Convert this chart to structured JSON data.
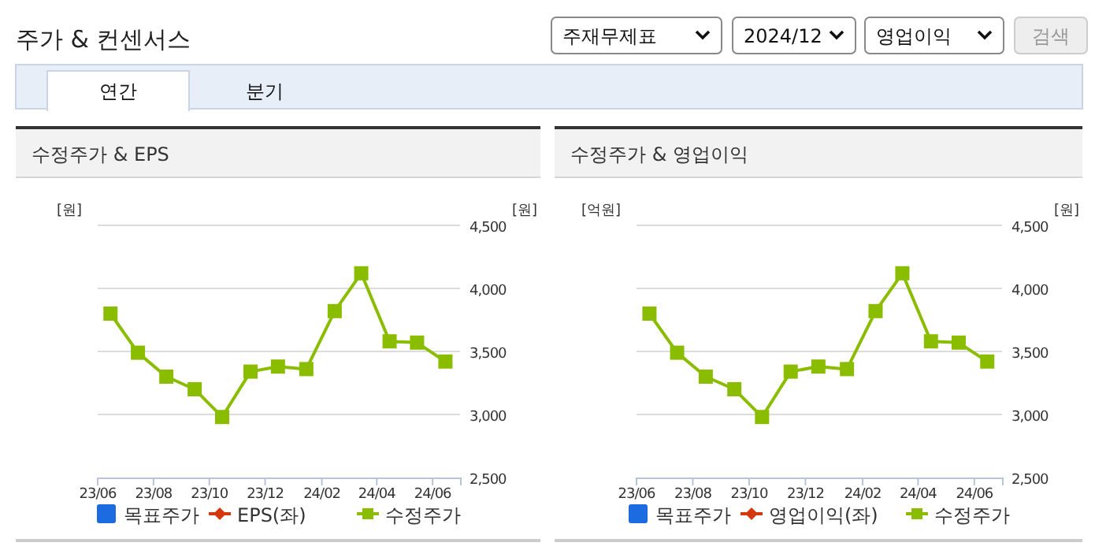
{
  "chart_data": [
    {
      "type": "other",
      "title": "주가 & 컨센서스",
      "annotations": [
        "주재무제표",
        "2024/12",
        "영업이익",
        "검색",
        "연간",
        "분기"
      ]
    },
    {
      "type": "line",
      "title": "수정주가 & EPS",
      "ylabel": "[원]",
      "y2label": "[원]",
      "x": [
        "2023-06-15",
        "2023-07-15",
        "2023-08-15",
        "2023-09-15",
        "2023-10-15",
        "2023-11-15",
        "2023-12-15",
        "2024-01-15",
        "2024-02-15",
        "2024-03-15",
        "2024-04-15",
        "2024-05-15",
        "2024-06-15"
      ],
      "xlim": [
        "2023-06",
        "2024-07"
      ],
      "xticks": [
        {
          "value": "2023-06",
          "label": "23/06"
        },
        {
          "value": "2023-08",
          "label": "23/08"
        },
        {
          "value": "2023-10",
          "label": "23/10"
        },
        {
          "value": "2023-12",
          "label": "23/12"
        },
        {
          "value": "2024-02",
          "label": "24/02"
        },
        {
          "value": "2024-04",
          "label": "24/04"
        },
        {
          "value": "2024-06",
          "label": "24/06"
        }
      ],
      "y2lim": [
        2500,
        4500
      ],
      "y2ticks": [
        {
          "value": 2500,
          "label": "2,500"
        },
        {
          "value": 3000,
          "label": "3,000"
        },
        {
          "value": 3500,
          "label": "3,500"
        },
        {
          "value": 4000,
          "label": "4,000"
        },
        {
          "value": 4500,
          "label": "4,500"
        }
      ],
      "grid": "y",
      "legend": "bottom",
      "series": [
        {
          "name": "목표주가",
          "type": "bar",
          "color": "#1c6be0",
          "values": [
            null,
            null,
            null,
            null,
            null,
            null,
            null,
            null,
            null,
            null,
            null,
            null,
            null
          ]
        },
        {
          "name": "EPS(좌)",
          "type": "line",
          "marker": "diamond",
          "color": "#d4380d",
          "values": [
            null,
            null,
            null,
            null,
            null,
            null,
            null,
            null,
            null,
            null,
            null,
            null,
            null
          ]
        },
        {
          "name": "수정주가",
          "type": "line",
          "marker": "square",
          "axis": "y2",
          "color": "#8abd00",
          "values": [
            3800,
            3490,
            3300,
            3200,
            2980,
            3340,
            3380,
            3360,
            3820,
            4120,
            3580,
            3570,
            3420
          ]
        }
      ]
    },
    {
      "type": "line",
      "title": "수정주가 & 영업이익",
      "ylabel": "[억원]",
      "y2label": "[원]",
      "x": [
        "2023-06-15",
        "2023-07-15",
        "2023-08-15",
        "2023-09-15",
        "2023-10-15",
        "2023-11-15",
        "2023-12-15",
        "2024-01-15",
        "2024-02-15",
        "2024-03-15",
        "2024-04-15",
        "2024-05-15",
        "2024-06-15"
      ],
      "xlim": [
        "2023-06",
        "2024-07"
      ],
      "xticks": [
        {
          "value": "2023-06",
          "label": "23/06"
        },
        {
          "value": "2023-08",
          "label": "23/08"
        },
        {
          "value": "2023-10",
          "label": "23/10"
        },
        {
          "value": "2023-12",
          "label": "23/12"
        },
        {
          "value": "2024-02",
          "label": "24/02"
        },
        {
          "value": "2024-04",
          "label": "24/04"
        },
        {
          "value": "2024-06",
          "label": "24/06"
        }
      ],
      "y2lim": [
        2500,
        4500
      ],
      "y2ticks": [
        {
          "value": 2500,
          "label": "2,500"
        },
        {
          "value": 3000,
          "label": "3,000"
        },
        {
          "value": 3500,
          "label": "3,500"
        },
        {
          "value": 4000,
          "label": "4,000"
        },
        {
          "value": 4500,
          "label": "4,500"
        }
      ],
      "grid": "y",
      "legend": "bottom",
      "series": [
        {
          "name": "목표주가",
          "type": "bar",
          "color": "#1c6be0",
          "values": [
            null,
            null,
            null,
            null,
            null,
            null,
            null,
            null,
            null,
            null,
            null,
            null,
            null
          ]
        },
        {
          "name": "영업이익(좌)",
          "type": "line",
          "marker": "diamond",
          "color": "#d4380d",
          "values": [
            null,
            null,
            null,
            null,
            null,
            null,
            null,
            null,
            null,
            null,
            null,
            null,
            null
          ]
        },
        {
          "name": "수정주가",
          "type": "line",
          "marker": "square",
          "axis": "y2",
          "color": "#8abd00",
          "values": [
            3800,
            3490,
            3300,
            3200,
            2980,
            3340,
            3380,
            3360,
            3820,
            4120,
            3580,
            3570,
            3420
          ]
        }
      ]
    }
  ]
}
